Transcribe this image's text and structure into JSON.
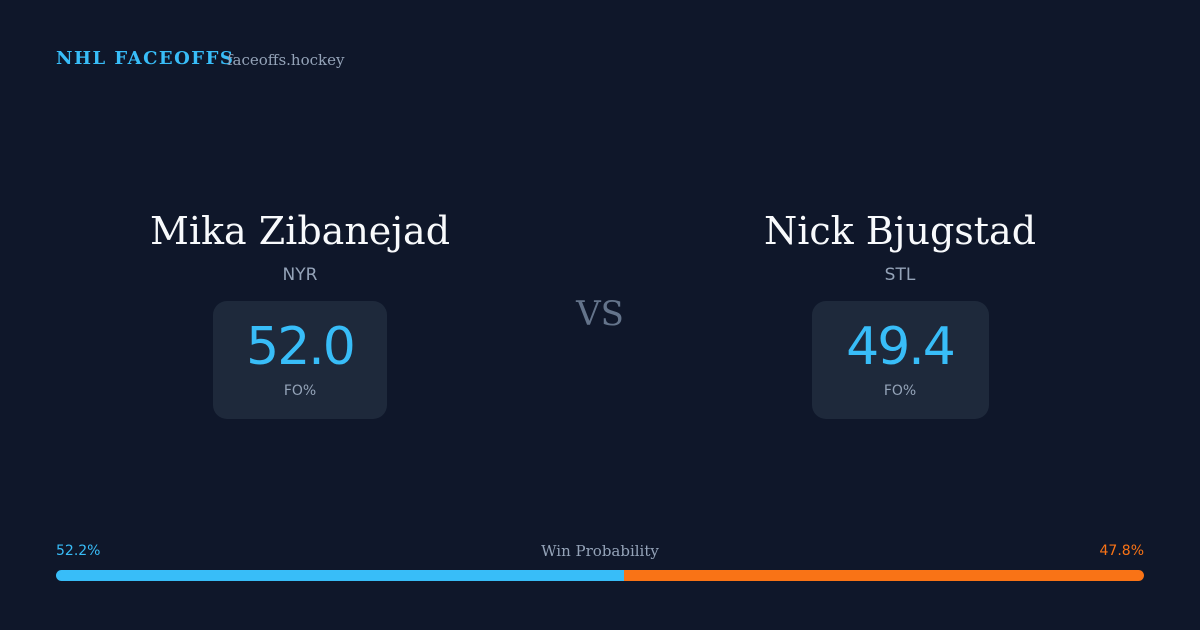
{
  "header": {
    "brand": "NHL FACEOFFS",
    "site": "faceoffs.hockey"
  },
  "players": [
    {
      "name": "Mika Zibanejad",
      "team": "NYR",
      "fo_pct": "52.0",
      "fo_label": "FO%"
    },
    {
      "name": "Nick Bjugstad",
      "team": "STL",
      "fo_pct": "49.4",
      "fo_label": "FO%"
    }
  ],
  "vs": "VS",
  "win_probability": {
    "label": "Win Probability",
    "values": [
      52.2,
      47.8
    ],
    "value_labels": [
      "52.2%",
      "47.8%"
    ]
  }
}
